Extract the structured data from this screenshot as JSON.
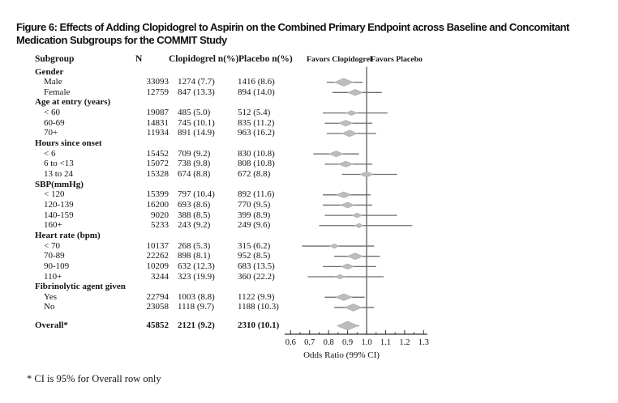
{
  "figure": {
    "title": "Figure 6: Effects of Adding Clopidogrel to Aspirin on the Combined Primary Endpoint across Baseline and Concomitant Medication Subgroups for the COMMIT Study"
  },
  "table": {
    "headers": {
      "subgroup": "Subgroup",
      "n": "N",
      "clopidogrel": "Clopidogrel n(%)",
      "placebo": "Placebo n(%)"
    },
    "footnote": "* CI is 95% for Overall row only"
  },
  "colors": {
    "diamond": "#bcbcbc",
    "diamond_edge": "#a6a6a6",
    "ci_line": "#6e6e6e",
    "ref_line": "#4f4f4f",
    "axis": "#2e2e2e",
    "text": "#111111"
  },
  "chart_data": {
    "type": "forest",
    "xlabel": "Odds Ratio (99% CI)",
    "favors_left": "Favors Clopidogrel",
    "favors_right": "Favors Placebo",
    "xlim": [
      0.6,
      1.3
    ],
    "x_ticks": [
      0.6,
      0.7,
      0.8,
      0.9,
      1.0,
      1.1,
      1.2,
      1.3
    ],
    "ref_line": 1.0,
    "rows": [
      {
        "label": "Gender",
        "group": true
      },
      {
        "label": "Male",
        "n": 33093,
        "clop_n": 1274,
        "clop_pct": "7.7",
        "plac_n": 1416,
        "plac_pct": "8.6",
        "or": 0.88,
        "lo": 0.79,
        "hi": 0.98
      },
      {
        "label": "Female",
        "n": 12759,
        "clop_n": 847,
        "clop_pct": "13.3",
        "plac_n": 894,
        "plac_pct": "14.0",
        "or": 0.94,
        "lo": 0.82,
        "hi": 1.08
      },
      {
        "label": "Age at entry (years)",
        "group": true
      },
      {
        "label": "< 60",
        "n": 19087,
        "clop_n": 485,
        "clop_pct": "5.0",
        "plac_n": 512,
        "plac_pct": "5.4",
        "or": 0.92,
        "lo": 0.77,
        "hi": 1.11
      },
      {
        "label": "60-69",
        "n": 14831,
        "clop_n": 745,
        "clop_pct": "10.1",
        "plac_n": 835,
        "plac_pct": "11.2",
        "or": 0.89,
        "lo": 0.78,
        "hi": 1.03
      },
      {
        "label": "70+",
        "n": 11934,
        "clop_n": 891,
        "clop_pct": "14.9",
        "plac_n": 963,
        "plac_pct": "16.2",
        "or": 0.91,
        "lo": 0.79,
        "hi": 1.05
      },
      {
        "label": "Hours since onset",
        "group": true
      },
      {
        "label": "< 6",
        "n": 15452,
        "clop_n": 709,
        "clop_pct": "9.2",
        "plac_n": 830,
        "plac_pct": "10.8",
        "or": 0.84,
        "lo": 0.72,
        "hi": 0.96
      },
      {
        "label": "6 to <13",
        "n": 15072,
        "clop_n": 738,
        "clop_pct": "9.8",
        "plac_n": 808,
        "plac_pct": "10.8",
        "or": 0.89,
        "lo": 0.78,
        "hi": 1.03
      },
      {
        "label": "13 to 24",
        "n": 15328,
        "clop_n": 674,
        "clop_pct": "8.8",
        "plac_n": 672,
        "plac_pct": "8.8",
        "or": 1.0,
        "lo": 0.87,
        "hi": 1.16
      },
      {
        "label": "SBP(mmHg)",
        "group": true
      },
      {
        "label": "< 120",
        "n": 15399,
        "clop_n": 797,
        "clop_pct": "10.4",
        "plac_n": 892,
        "plac_pct": "11.6",
        "or": 0.88,
        "lo": 0.77,
        "hi": 1.02
      },
      {
        "label": "120-139",
        "n": 16200,
        "clop_n": 693,
        "clop_pct": "8.6",
        "plac_n": 770,
        "plac_pct": "9.5",
        "or": 0.9,
        "lo": 0.77,
        "hi": 1.03
      },
      {
        "label": "140-159",
        "n": 9020,
        "clop_n": 388,
        "clop_pct": "8.5",
        "plac_n": 399,
        "plac_pct": "8.9",
        "or": 0.95,
        "lo": 0.78,
        "hi": 1.16
      },
      {
        "label": "160+",
        "n": 5233,
        "clop_n": 243,
        "clop_pct": "9.2",
        "plac_n": 249,
        "plac_pct": "9.6",
        "or": 0.96,
        "lo": 0.75,
        "hi": 1.24
      },
      {
        "label": "Heart rate (bpm)",
        "group": true
      },
      {
        "label": "< 70",
        "n": 10137,
        "clop_n": 268,
        "clop_pct": "5.3",
        "plac_n": 315,
        "plac_pct": "6.2",
        "or": 0.83,
        "lo": 0.66,
        "hi": 1.04
      },
      {
        "label": "70-89",
        "n": 22262,
        "clop_n": 898,
        "clop_pct": "8.1",
        "plac_n": 952,
        "plac_pct": "8.5",
        "or": 0.94,
        "lo": 0.83,
        "hi": 1.07
      },
      {
        "label": "90-109",
        "n": 10209,
        "clop_n": 632,
        "clop_pct": "12.3",
        "plac_n": 683,
        "plac_pct": "13.5",
        "or": 0.9,
        "lo": 0.77,
        "hi": 1.05
      },
      {
        "label": "110+",
        "n": 3244,
        "clop_n": 323,
        "clop_pct": "19.9",
        "plac_n": 360,
        "plac_pct": "22.2",
        "or": 0.86,
        "lo": 0.69,
        "hi": 1.09
      },
      {
        "label": "Fibrinolytic agent given",
        "group": true
      },
      {
        "label": "Yes",
        "n": 22794,
        "clop_n": 1003,
        "clop_pct": "8.8",
        "plac_n": 1122,
        "plac_pct": "9.9",
        "or": 0.88,
        "lo": 0.78,
        "hi": 0.99
      },
      {
        "label": "No",
        "n": 23058,
        "clop_n": 1118,
        "clop_pct": "9.7",
        "plac_n": 1188,
        "plac_pct": "10.3",
        "or": 0.93,
        "lo": 0.83,
        "hi": 1.04
      },
      {
        "label": "Overall*",
        "n": 45852,
        "clop_n": 2121,
        "clop_pct": "9.2",
        "plac_n": 2310,
        "plac_pct": "10.1",
        "or": 0.9,
        "lo": 0.85,
        "hi": 0.96,
        "overall": true
      }
    ]
  }
}
